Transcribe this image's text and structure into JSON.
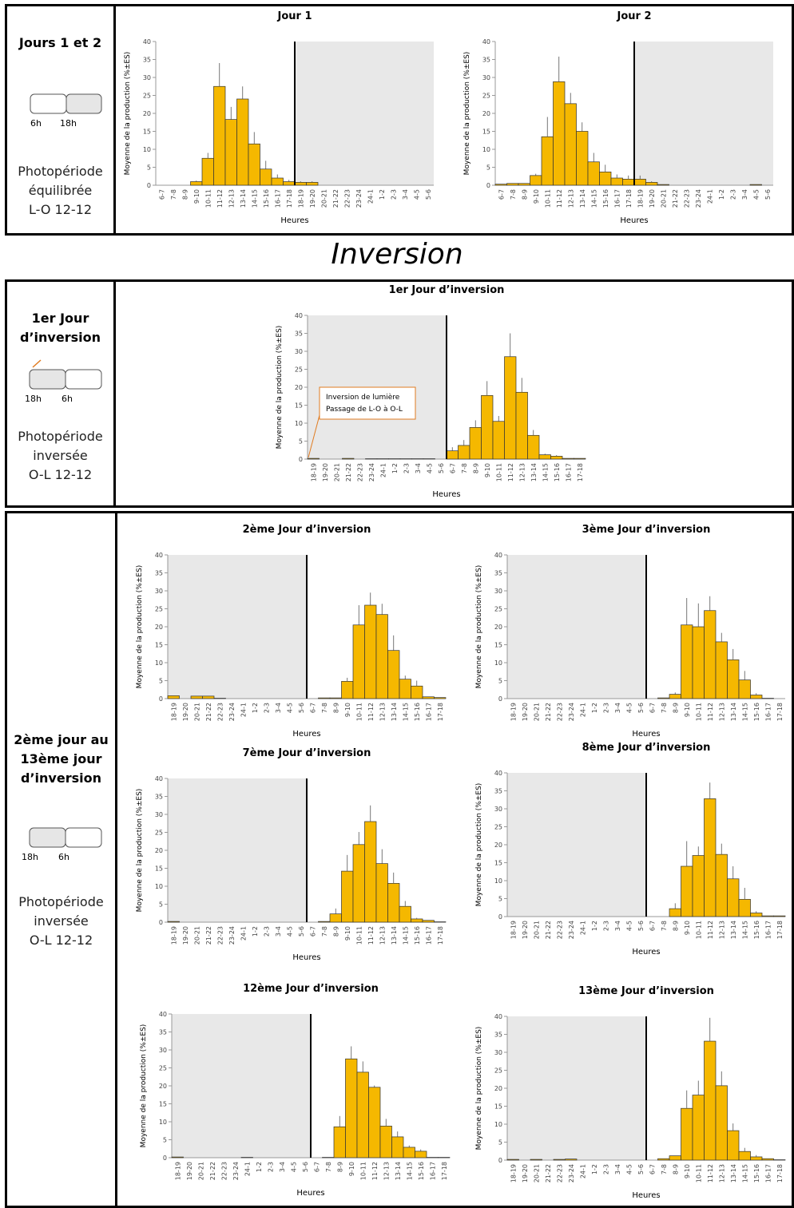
{
  "section_title": "Inversion",
  "panels": [
    {
      "label": [
        "Jours 1 et 2"
      ],
      "times": [
        "6h",
        "18h"
      ],
      "photoperiod": [
        "Photopériode",
        "équilibrée",
        "L-O 12-12"
      ]
    },
    {
      "label": [
        "1er Jour",
        "d’inversion"
      ],
      "times": [
        "18h",
        "6h"
      ],
      "photoperiod": [
        "Photopériode",
        "inversée",
        "O-L 12-12"
      ]
    },
    {
      "label": [
        "2ème jour au",
        "13ème jour",
        "d’inversion"
      ],
      "times": [
        "18h",
        "6h"
      ],
      "photoperiod": [
        "Photopériode",
        "inversée",
        "O-L 12-12"
      ]
    }
  ],
  "chart_data": [
    {
      "type": "bar",
      "title": "Jour 1",
      "xlabel": "Heures",
      "ylabel": "Moyenne de la production (%±ES)",
      "color": "#f5b800",
      "ylim": [
        0,
        40
      ],
      "yticks": [
        0,
        5,
        10,
        15,
        20,
        25,
        30,
        35,
        40
      ],
      "shaded": [
        12,
        24
      ],
      "divider": 12,
      "categories": [
        "6-7",
        "7-8",
        "8-9",
        "9-10",
        "10-11",
        "11-12",
        "12-13",
        "13-14",
        "14-15",
        "15-16",
        "16-17",
        "17-18",
        "18-19",
        "19-20",
        "20-21",
        "21-22",
        "22-23",
        "23-24",
        "24-1",
        "1-2",
        "2-3",
        "3-4",
        "4-5",
        "5-6"
      ],
      "values": [
        0,
        0,
        0,
        1,
        7.5,
        27.5,
        18.3,
        24,
        11.5,
        4.5,
        2,
        1,
        0.8,
        0.8,
        0,
        0,
        0,
        0,
        0,
        0,
        0,
        0,
        0,
        0
      ],
      "errors": [
        0,
        0,
        0,
        0.3,
        1.5,
        6.5,
        3.5,
        3.5,
        3.3,
        2.3,
        1,
        0.5,
        0.3,
        0.3,
        0,
        0,
        0,
        0,
        0,
        0,
        0,
        0,
        0,
        0
      ]
    },
    {
      "type": "bar",
      "title": "Jour 2",
      "xlabel": "Heures",
      "ylabel": "Moyenne de la production (%±ES)",
      "color": "#f5b800",
      "ylim": [
        0,
        40
      ],
      "yticks": [
        0,
        5,
        10,
        15,
        20,
        25,
        30,
        35,
        40
      ],
      "shaded": [
        12,
        24
      ],
      "divider": 12,
      "categories": [
        "6-7",
        "7-8",
        "8-9",
        "9-10",
        "10-11",
        "11-12",
        "12-13",
        "13-14",
        "14-15",
        "15-16",
        "16-17",
        "17-18",
        "18-19",
        "19-20",
        "20-21",
        "21-22",
        "22-23",
        "23-24",
        "24-1",
        "1-2",
        "2-3",
        "3-4",
        "4-5",
        "5-6"
      ],
      "values": [
        0.3,
        0.5,
        0.5,
        2.7,
        13.5,
        28.8,
        22.7,
        15,
        6.5,
        3.7,
        2,
        1.7,
        1.7,
        0.8,
        0.2,
        0,
        0,
        0,
        0,
        0,
        0,
        0,
        0.2,
        0
      ],
      "errors": [
        0,
        0,
        0,
        0.5,
        5.5,
        7,
        3,
        2.5,
        2.5,
        2,
        1,
        1,
        1,
        0.3,
        0,
        0,
        0,
        0,
        0,
        0,
        0,
        0,
        0,
        0
      ]
    },
    {
      "type": "bar",
      "title": "1er Jour d’inversion",
      "xlabel": "Heures",
      "ylabel": "Moyenne de la production (%±ES)",
      "color": "#f5b800",
      "ylim": [
        0,
        40
      ],
      "yticks": [
        0,
        5,
        10,
        15,
        20,
        25,
        30,
        35,
        40
      ],
      "shaded": [
        0,
        12
      ],
      "divider": 12,
      "annotation": [
        "Inversion de lumière",
        "Passage de L-O à O-L"
      ],
      "categories": [
        "18-19",
        "19-20",
        "20-21",
        "21-22",
        "22-23",
        "23-24",
        "24-1",
        "1-2",
        "2-3",
        "3-4",
        "4-5",
        "5-6",
        "6-7",
        "7-8",
        "8-9",
        "9-10",
        "10-11",
        "11-12",
        "12-13",
        "13-14",
        "14-15",
        "15-16",
        "16-17",
        "17-18"
      ],
      "values": [
        0.2,
        0,
        0,
        0.2,
        0,
        0.1,
        0.1,
        0.1,
        0.1,
        0.1,
        0.1,
        0,
        2.3,
        3.8,
        8.8,
        17.7,
        10.5,
        28.5,
        18.6,
        6.6,
        1.2,
        0.8,
        0.2,
        0.2
      ],
      "errors": [
        0,
        0,
        0,
        0,
        0,
        0,
        0,
        0,
        0,
        0,
        0,
        0,
        1,
        1.5,
        2,
        4,
        1.5,
        6.5,
        4,
        1.5,
        0.3,
        0.3,
        0,
        0
      ]
    },
    {
      "type": "bar",
      "title": "2ème Jour d’inversion",
      "xlabel": "Heures",
      "ylabel": "Moyenne de la production (%±ES)",
      "color": "#f5b800",
      "ylim": [
        0,
        40
      ],
      "yticks": [
        0,
        5,
        10,
        15,
        20,
        25,
        30,
        35,
        40
      ],
      "shaded": [
        0,
        12
      ],
      "divider": 12,
      "categories": [
        "18-19",
        "19-20",
        "20-21",
        "21-22",
        "22-23",
        "23-24",
        "24-1",
        "1-2",
        "2-3",
        "3-4",
        "4-5",
        "5-6",
        "6-7",
        "7-8",
        "8-9",
        "9-10",
        "10-11",
        "11-12",
        "12-13",
        "13-14",
        "14-15",
        "15-16",
        "16-17",
        "17-18"
      ],
      "values": [
        0.8,
        0,
        0.7,
        0.7,
        0.1,
        0,
        0,
        0,
        0,
        0,
        0,
        0,
        0,
        0.2,
        0.2,
        4.8,
        20.5,
        26,
        23.4,
        13.4,
        5.4,
        3.5,
        0.5,
        0.3
      ],
      "errors": [
        0,
        0,
        0,
        0,
        0,
        0,
        0,
        0,
        0,
        0,
        0,
        0,
        0,
        0,
        0,
        1,
        5.5,
        3.5,
        3,
        4.2,
        1,
        1.5,
        0,
        0
      ]
    },
    {
      "type": "bar",
      "title": "3ème Jour d’inversion",
      "xlabel": "Heures",
      "ylabel": "Moyenne de la production (%±ES)",
      "color": "#f5b800",
      "ylim": [
        0,
        40
      ],
      "yticks": [
        0,
        5,
        10,
        15,
        20,
        25,
        30,
        35,
        40
      ],
      "shaded": [
        0,
        12
      ],
      "divider": 12,
      "categories": [
        "18-19",
        "19-20",
        "20-21",
        "21-22",
        "22-23",
        "23-24",
        "24-1",
        "1-2",
        "2-3",
        "3-4",
        "4-5",
        "5-6",
        "6-7",
        "7-8",
        "8-9",
        "9-10",
        "10-11",
        "11-12",
        "12-13",
        "13-14",
        "14-15",
        "15-16",
        "16-17",
        "17-18"
      ],
      "values": [
        0,
        0,
        0,
        0,
        0,
        0,
        0,
        0,
        0,
        0,
        0,
        0,
        0,
        0.2,
        1.2,
        20.5,
        20,
        24.5,
        15.8,
        10.8,
        5.2,
        1,
        0.1,
        0
      ],
      "errors": [
        0,
        0,
        0,
        0,
        0,
        0,
        0,
        0,
        0,
        0,
        0,
        0,
        0,
        0,
        0.5,
        7.5,
        6.5,
        4,
        2.5,
        3,
        2.5,
        0.5,
        0,
        0
      ]
    },
    {
      "type": "bar",
      "title": "7ème Jour d’inversion",
      "xlabel": "Heures",
      "ylabel": "Moyenne de la production (%±ES)",
      "color": "#f5b800",
      "ylim": [
        0,
        40
      ],
      "yticks": [
        0,
        5,
        10,
        15,
        20,
        25,
        30,
        35,
        40
      ],
      "shaded": [
        0,
        12
      ],
      "divider": 12,
      "categories": [
        "18-19",
        "19-20",
        "20-21",
        "21-22",
        "22-23",
        "23-24",
        "24-1",
        "1-2",
        "2-3",
        "3-4",
        "4-5",
        "5-6",
        "6-7",
        "7-8",
        "8-9",
        "9-10",
        "10-11",
        "11-12",
        "12-13",
        "13-14",
        "14-15",
        "15-16",
        "16-17",
        "17-18"
      ],
      "values": [
        0.2,
        0,
        0,
        0,
        0,
        0,
        0,
        0,
        0,
        0,
        0,
        0,
        0,
        0.2,
        2.3,
        14.2,
        21.6,
        28,
        16.3,
        10.8,
        4.4,
        0.9,
        0.5,
        0.1
      ],
      "errors": [
        0,
        0,
        0,
        0,
        0,
        0,
        0,
        0,
        0,
        0,
        0,
        0,
        0,
        0,
        1.5,
        4.5,
        3.5,
        4.5,
        4,
        3,
        1.5,
        0.3,
        0,
        0
      ]
    },
    {
      "type": "bar",
      "title": "8ème Jour d’inversion",
      "xlabel": "Heures",
      "ylabel": "Moyenne de la production (%±ES)",
      "color": "#f5b800",
      "ylim": [
        0,
        40
      ],
      "yticks": [
        0,
        5,
        10,
        15,
        20,
        25,
        30,
        35,
        40
      ],
      "shaded": [
        0,
        12
      ],
      "divider": 12,
      "categories": [
        "18-19",
        "19-20",
        "20-21",
        "21-22",
        "22-23",
        "23-24",
        "24-1",
        "1-2",
        "2-3",
        "3-4",
        "4-5",
        "5-6",
        "6-7",
        "7-8",
        "8-9",
        "9-10",
        "10-11",
        "11-12",
        "12-13",
        "13-14",
        "14-15",
        "15-16",
        "16-17",
        "17-18"
      ],
      "values": [
        0,
        0,
        0,
        0,
        0,
        0,
        0,
        0,
        0,
        0,
        0,
        0,
        0,
        0,
        2.2,
        14,
        17,
        32.8,
        17.3,
        10.5,
        4.8,
        1,
        0.2,
        0.2
      ],
      "errors": [
        0,
        0,
        0,
        0,
        0,
        0,
        0,
        0,
        0,
        0,
        0,
        0,
        0,
        0,
        1.5,
        7,
        2.5,
        4.5,
        3,
        3.5,
        3.2,
        0.5,
        0,
        0
      ]
    },
    {
      "type": "bar",
      "title": "12ème Jour d’inversion",
      "xlabel": "Heures",
      "ylabel": "Moyenne de la production (%±ES)",
      "color": "#f5b800",
      "ylim": [
        0,
        40
      ],
      "yticks": [
        0,
        5,
        10,
        15,
        20,
        25,
        30,
        35,
        40
      ],
      "shaded": [
        0,
        12
      ],
      "divider": 12,
      "categories": [
        "18-19",
        "19-20",
        "20-21",
        "21-22",
        "22-23",
        "23-24",
        "24-1",
        "1-2",
        "2-3",
        "3-4",
        "4-5",
        "5-6",
        "6-7",
        "7-8",
        "8-9",
        "9-10",
        "10-11",
        "11-12",
        "12-13",
        "13-14",
        "14-15",
        "15-16",
        "16-17",
        "17-18"
      ],
      "values": [
        0.2,
        0,
        0,
        0,
        0,
        0,
        0.1,
        0,
        0,
        0,
        0,
        0,
        0,
        0.1,
        8.6,
        27.5,
        23.8,
        19.6,
        8.8,
        5.8,
        2.9,
        1.8,
        0.1,
        0.1
      ],
      "errors": [
        0,
        0,
        0,
        0,
        0,
        0,
        0,
        0,
        0,
        0,
        0,
        0,
        0,
        0,
        3,
        3.5,
        3,
        0.5,
        2,
        1.5,
        0.5,
        0.5,
        0,
        0
      ]
    },
    {
      "type": "bar",
      "title": "13ème Jour d’inversion",
      "xlabel": "Heures",
      "ylabel": "Moyenne de la production (%±ES)",
      "color": "#f5b800",
      "ylim": [
        0,
        40
      ],
      "yticks": [
        0,
        5,
        10,
        15,
        20,
        25,
        30,
        35,
        40
      ],
      "shaded": [
        0,
        12
      ],
      "divider": 12,
      "categories": [
        "18-19",
        "19-20",
        "20-21",
        "21-22",
        "22-23",
        "23-24",
        "24-1",
        "1-2",
        "2-3",
        "3-4",
        "4-5",
        "5-6",
        "6-7",
        "7-8",
        "8-9",
        "9-10",
        "10-11",
        "11-12",
        "12-13",
        "13-14",
        "14-15",
        "15-16",
        "16-17",
        "17-18"
      ],
      "values": [
        0.2,
        0,
        0.2,
        0,
        0.2,
        0.3,
        0,
        0,
        0,
        0,
        0,
        0,
        0,
        0.4,
        1.2,
        14.4,
        18.1,
        33.1,
        20.7,
        8.2,
        2.4,
        0.9,
        0.4,
        0.1
      ],
      "errors": [
        0,
        0,
        0,
        0,
        0,
        0,
        0,
        0,
        0,
        0,
        0,
        0,
        0,
        0,
        0,
        5,
        4,
        6.5,
        4,
        2,
        1,
        0.5,
        0,
        0
      ]
    }
  ]
}
